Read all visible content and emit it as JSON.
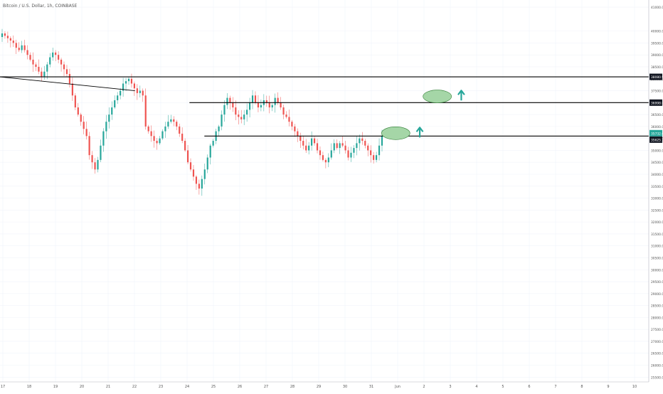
{
  "chart_data": {
    "type": "candlestick",
    "title": "Bitcoin / U.S. Dollar, 1h, COINBASE",
    "ylim": [
      25300,
      41300
    ],
    "grid": true,
    "x_tick_labels": [
      "17",
      "18",
      "19",
      "20",
      "21",
      "22",
      "23",
      "24",
      "25",
      "26",
      "27",
      "28",
      "29",
      "30",
      "31",
      "Jun",
      "2",
      "3",
      "4",
      "5",
      "6",
      "7",
      "8",
      "9",
      "10"
    ],
    "y_tick_labels": [
      "41000.00",
      "40000.00",
      "39500.00",
      "39000.00",
      "38500.00",
      "38000.00",
      "37500.00",
      "37000.00",
      "36500.00",
      "36000.00",
      "35500.00",
      "35000.00",
      "34500.00",
      "34000.00",
      "33500.00",
      "33000.00",
      "32500.00",
      "32000.00",
      "31500.00",
      "31000.00",
      "30500.00",
      "30000.00",
      "29500.00",
      "29000.00",
      "28500.00",
      "28000.00",
      "27500.00",
      "27000.00",
      "26500.00",
      "26000.00",
      "25500.00"
    ],
    "price_tags": [
      {
        "label": "38080.91",
        "value": 38081,
        "style": "dark"
      },
      {
        "label": "36998.00",
        "value": 37000,
        "style": "dark"
      },
      {
        "label": "35732.00",
        "value": 35720,
        "style": "green"
      },
      {
        "label": "35625.12",
        "value": 35450,
        "style": "dark"
      }
    ],
    "horizontal_levels": [
      {
        "value": 38081,
        "x_from": 0,
        "x_to": 1
      },
      {
        "value": 37000,
        "x_from": 0.292,
        "x_to": 1
      },
      {
        "value": 35600,
        "x_from": 0.315,
        "x_to": 1
      }
    ],
    "trendline": {
      "start": [
        0.0,
        38081
      ],
      "end": [
        0.208,
        37500
      ]
    },
    "closes": [
      39900,
      39800,
      39700,
      39600,
      39500,
      39300,
      39200,
      39400,
      39200,
      39000,
      38800,
      38600,
      38500,
      38300,
      38100,
      38300,
      38600,
      38900,
      39100,
      39000,
      38800,
      38600,
      38400,
      38200,
      37800,
      37300,
      36800,
      36500,
      36200,
      35900,
      35600,
      34800,
      34500,
      34200,
      34600,
      35200,
      35800,
      36200,
      36500,
      36800,
      37100,
      37300,
      37500,
      37800,
      37900,
      38000,
      37800,
      37600,
      37400,
      37500,
      37300,
      36000,
      35800,
      35600,
      35400,
      35300,
      35500,
      35800,
      36000,
      36200,
      36300,
      36200,
      36000,
      35700,
      35400,
      35000,
      34500,
      34200,
      33900,
      33600,
      33400,
      33800,
      34200,
      34700,
      35200,
      35400,
      35800,
      36000,
      36500,
      36900,
      37200,
      37000,
      36800,
      36500,
      36400,
      36300,
      36500,
      36700,
      37000,
      37300,
      37000,
      36800,
      36900,
      37100,
      37000,
      36800,
      36900,
      37200,
      37000,
      36800,
      36500,
      36400,
      36200,
      36000,
      35800,
      35600,
      35400,
      35200,
      35000,
      35200,
      35500,
      35300,
      35000,
      34800,
      34600,
      34500,
      34700,
      35000,
      35300,
      35100,
      35300,
      35200,
      35000,
      34700,
      34900,
      35100,
      35300,
      35500,
      35400,
      35200,
      35000,
      34800,
      34600,
      34800,
      35200,
      35600
    ]
  },
  "annotations": {
    "ellipses": [
      {
        "x": 0.674,
        "value": 37260
      },
      {
        "x": 0.61,
        "value": 35720
      }
    ],
    "arrows": [
      {
        "x": 0.711,
        "value": 37300
      },
      {
        "x": 0.647,
        "value": 35750
      }
    ],
    "ellipse_color": "#a5d6a7",
    "ellipse_stroke": "#2e7d32",
    "arrow_color": "#26a69a"
  },
  "colors": {
    "up": "#26a69a",
    "down": "#ef5350",
    "grid": "#f0f3fa",
    "axis_text": "#555555",
    "line": "#000000",
    "tag_dark": "#131722",
    "tag_green": "#26a69a"
  }
}
